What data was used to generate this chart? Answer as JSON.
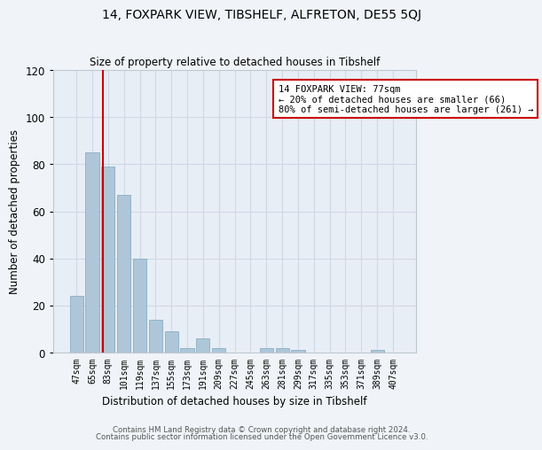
{
  "title": "14, FOXPARK VIEW, TIBSHELF, ALFRETON, DE55 5QJ",
  "subtitle": "Size of property relative to detached houses in Tibshelf",
  "xlabel": "Distribution of detached houses by size in Tibshelf",
  "ylabel": "Number of detached properties",
  "categories": [
    "47sqm",
    "65sqm",
    "83sqm",
    "101sqm",
    "119sqm",
    "137sqm",
    "155sqm",
    "173sqm",
    "191sqm",
    "209sqm",
    "227sqm",
    "245sqm",
    "263sqm",
    "281sqm",
    "299sqm",
    "317sqm",
    "335sqm",
    "353sqm",
    "371sqm",
    "389sqm",
    "407sqm"
  ],
  "values": [
    24,
    85,
    79,
    67,
    40,
    14,
    9,
    2,
    6,
    2,
    0,
    0,
    2,
    2,
    1,
    0,
    0,
    0,
    0,
    1,
    0
  ],
  "bar_color": "#aec6d8",
  "bar_edge_color": "#8aaec8",
  "grid_color": "#d0d8e8",
  "background_color": "#e8eef5",
  "fig_background_color": "#f0f4f8",
  "vline_color": "#cc0000",
  "annotation_title": "14 FOXPARK VIEW: 77sqm",
  "annotation_line1": "← 20% of detached houses are smaller (66)",
  "annotation_line2": "80% of semi-detached houses are larger (261) →",
  "annotation_box_color": "#ffffff",
  "annotation_box_edge": "#cc0000",
  "footnote1": "Contains HM Land Registry data © Crown copyright and database right 2024.",
  "footnote2": "Contains public sector information licensed under the Open Government Licence v3.0.",
  "ylim": [
    0,
    120
  ],
  "yticks": [
    0,
    20,
    40,
    60,
    80,
    100,
    120
  ]
}
